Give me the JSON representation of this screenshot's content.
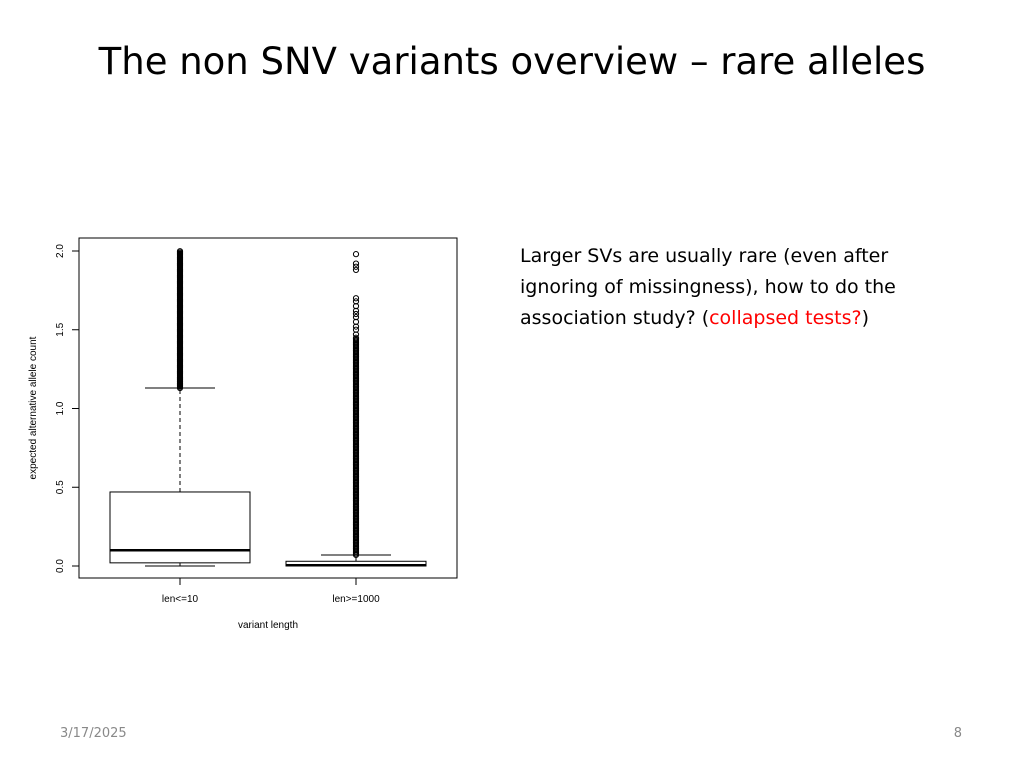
{
  "slide": {
    "title": "The non SNV variants overview – rare alleles",
    "text_before": "Larger SVs are usually rare (even after ignoring of missingness), how to do the association study? (",
    "text_highlight": "collapsed tests?",
    "text_after": ")",
    "highlight_color": "#ff0000",
    "date": "3/17/2025",
    "page_number": "8"
  },
  "chart_data": {
    "type": "boxplot",
    "xlabel": "variant length",
    "ylabel": "expected alternative allele count",
    "ylim": [
      0,
      2.0
    ],
    "yticks": [
      0.0,
      0.5,
      1.0,
      1.5,
      2.0
    ],
    "ytick_labels": [
      "0.0",
      "0.5",
      "1.0",
      "1.5",
      "2.0"
    ],
    "categories": [
      "len<=10",
      "len>=1000"
    ],
    "boxes": [
      {
        "category": "len<=10",
        "whisker_low": 0.0,
        "q1": 0.02,
        "median": 0.1,
        "q3": 0.47,
        "whisker_high": 1.13,
        "outlier_range": [
          1.13,
          2.0
        ]
      },
      {
        "category": "len>=1000",
        "whisker_low": 0.0,
        "q1": 0.0,
        "median": 0.005,
        "q3": 0.03,
        "whisker_high": 0.07,
        "outlier_range": [
          0.07,
          1.45
        ],
        "sparse_outliers": [
          1.47,
          1.5,
          1.52,
          1.55,
          1.58,
          1.6,
          1.62,
          1.65,
          1.68,
          1.7,
          1.88,
          1.9,
          1.92,
          1.98
        ]
      }
    ],
    "grid": false
  }
}
